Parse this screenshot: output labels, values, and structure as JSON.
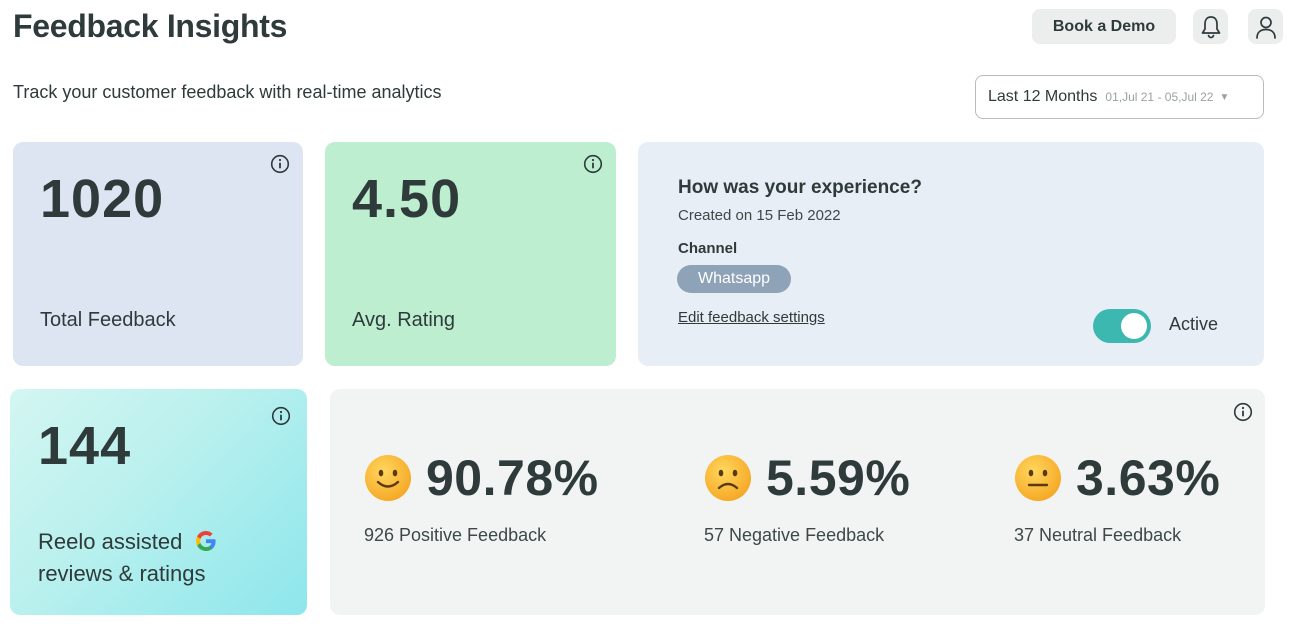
{
  "header": {
    "title": "Feedback Insights",
    "subtitle": "Track your customer feedback with real-time analytics",
    "demo_label": "Book a Demo",
    "icons": [
      "bell-icon",
      "user-icon"
    ]
  },
  "date_filter": {
    "range_label": "Last 12 Months",
    "span": "01,Jul 21 - 05,Jul 22"
  },
  "cards": {
    "total": {
      "value": "1020",
      "label": "Total Feedback",
      "color": "#dde5f2"
    },
    "avg": {
      "value": "4.50",
      "label": "Avg. Rating",
      "color": "#bdeed0"
    },
    "google": {
      "value": "144",
      "label_line1": "Reelo assisted",
      "label_line2": "reviews & ratings"
    }
  },
  "experience": {
    "question": "How was your experience?",
    "created": "Created on 15 Feb 2022",
    "channel_heading": "Channel",
    "channel": "Whatsapp",
    "edit_link": "Edit feedback settings",
    "status": "Active",
    "toggle_on": true,
    "accent": "#3cb8b0"
  },
  "sentiment": [
    {
      "percent": "90.78%",
      "label": "926 Positive Feedback",
      "icon": "smile-emoji-icon"
    },
    {
      "percent": "5.59%",
      "label": "57 Negative Feedback",
      "icon": "frown-emoji-icon"
    },
    {
      "percent": "3.63%",
      "label": "37 Neutral Feedback",
      "icon": "neutral-emoji-icon"
    }
  ]
}
